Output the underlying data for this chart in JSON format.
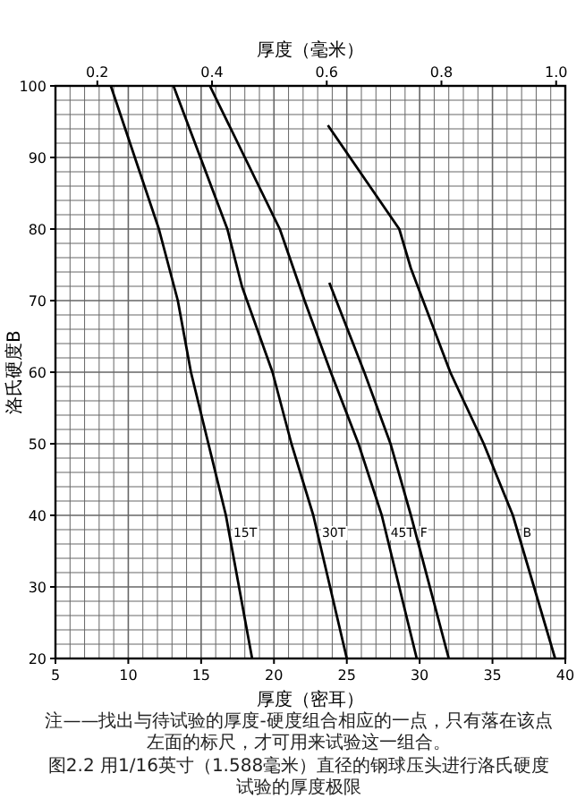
{
  "chart_data": {
    "type": "line",
    "xlabel": "厚度（密耳）",
    "x2label": "厚度（毫米）",
    "ylabel": "洛氏硬度B",
    "xlim": [
      5,
      40
    ],
    "xticks": [
      5,
      10,
      15,
      20,
      25,
      30,
      35,
      40
    ],
    "x2lim": [
      0.127,
      1.016
    ],
    "x2ticks": [
      0.2,
      0.4,
      0.6,
      0.8,
      {
        "value": 1.0,
        "label": "1.0"
      }
    ],
    "ylim": [
      20,
      100
    ],
    "yticks": [
      20,
      30,
      40,
      50,
      60,
      70,
      80,
      90,
      100
    ],
    "grid": true,
    "marker": "none",
    "line_style": "solid",
    "series": [
      {
        "name": "15T",
        "color": "#000000",
        "x": [
          8.8,
          12.1,
          13.4,
          14.3,
          15.5,
          16.7,
          18.5
        ],
        "values": [
          100,
          80,
          70,
          60,
          50,
          40,
          20
        ]
      },
      {
        "name": "30T",
        "color": "#000000",
        "x": [
          13.1,
          16.8,
          17.8,
          19.9,
          21.2,
          22.7,
          25.0
        ],
        "values": [
          100,
          80,
          72,
          60,
          50,
          40,
          20
        ]
      },
      {
        "name": "45T",
        "color": "#000000",
        "x": [
          15.6,
          20.4,
          22.1,
          23.9,
          25.8,
          27.4,
          29.8
        ],
        "values": [
          100,
          80,
          70,
          60,
          50,
          40,
          20
        ]
      },
      {
        "name": "F",
        "color": "#000000",
        "x": [
          23.8,
          26.2,
          28.0,
          29.4,
          32.0
        ],
        "values": [
          72.5,
          60,
          50,
          40,
          20
        ]
      },
      {
        "name": "B",
        "color": "#000000",
        "x": [
          23.7,
          28.6,
          29.4,
          32.1,
          34.4,
          36.4,
          39.3
        ],
        "values": [
          94.5,
          80,
          74.5,
          60,
          50,
          40,
          20
        ]
      }
    ],
    "annotations": [
      "注——找出与待试验的厚度-硬度组合相应的一点，只有落在该点左面的标尺，才可用来试验这一组合。",
      "图2.2 用1/16英寸（1.588毫米）直径的钢球压头进行洛氏硬度试验的厚度极限"
    ]
  }
}
